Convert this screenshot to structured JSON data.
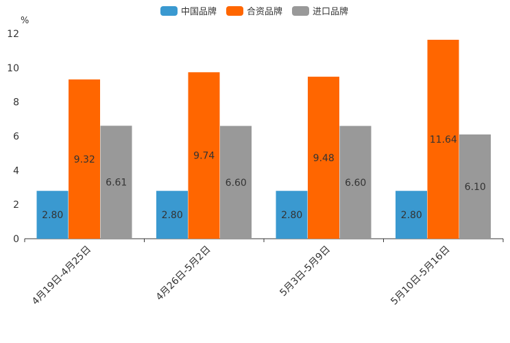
{
  "chart_data": {
    "type": "bar",
    "title": "",
    "xlabel": "",
    "ylabel": "%",
    "ylim": [
      0,
      12
    ],
    "yticks": [
      0,
      2,
      4,
      6,
      8,
      10,
      12
    ],
    "categories": [
      "4月19日-4月25日",
      "4月26日-5月2日",
      "5月3日-5月9日",
      "5月10日-5月16日"
    ],
    "series": [
      {
        "name": "中国品牌",
        "color": "#3a99d0",
        "values": [
          2.8,
          2.8,
          2.8,
          2.8
        ],
        "labels": [
          "2.80",
          "2.80",
          "2.80",
          "2.80"
        ]
      },
      {
        "name": "合资品牌",
        "color": "#ff6600",
        "values": [
          9.32,
          9.74,
          9.48,
          11.64
        ],
        "labels": [
          "9.32",
          "9.74",
          "9.48",
          "11.64"
        ]
      },
      {
        "name": "进口品牌",
        "color": "#999999",
        "values": [
          6.61,
          6.6,
          6.6,
          6.1
        ],
        "labels": [
          "6.61",
          "6.60",
          "6.60",
          "6.10"
        ]
      }
    ],
    "legend_position": "top-center",
    "grid": false
  }
}
